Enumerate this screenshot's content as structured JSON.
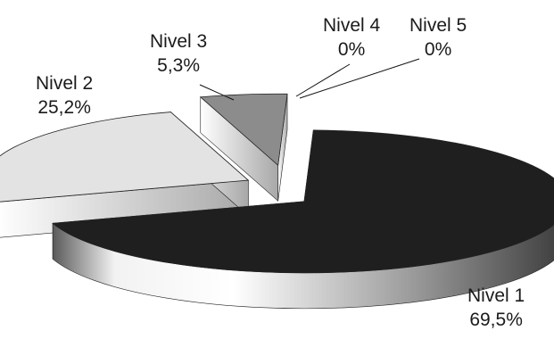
{
  "chart_data": {
    "type": "pie",
    "style": "3d-exploded",
    "slices": [
      {
        "name": "Nivel 1",
        "value": 69.5,
        "value_label": "69,5%",
        "color": "#1f1f1f"
      },
      {
        "name": "Nivel 2",
        "value": 25.2,
        "value_label": "25,2%",
        "color": "#e3e3e3"
      },
      {
        "name": "Nivel 3",
        "value": 5.3,
        "value_label": "5,3%",
        "color": "#8c8c8c"
      },
      {
        "name": "Nivel 4",
        "value": 0,
        "value_label": "0%",
        "color": "#bdbdbd"
      },
      {
        "name": "Nivel 5",
        "value": 0,
        "value_label": "0%",
        "color": "#d9d9d9"
      }
    ],
    "title": "",
    "legend": "none"
  }
}
